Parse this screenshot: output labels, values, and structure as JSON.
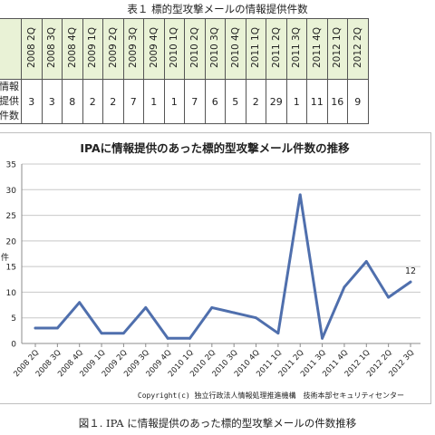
{
  "table": {
    "caption": "表１ 標的型攻撃メールの情報提供件数",
    "row_header": "情報提供件数",
    "periods": [
      "2008 2Q",
      "2008 3Q",
      "2008 4Q",
      "2009 1Q",
      "2009 2Q",
      "2009 3Q",
      "2009 4Q",
      "2010 1Q",
      "2010 2Q",
      "2010 3Q",
      "2010 4Q",
      "2011 1Q",
      "2011 2Q",
      "2011 3Q",
      "2011 4Q",
      "2012 1Q",
      "2012 2Q"
    ],
    "counts": [
      3,
      3,
      8,
      2,
      2,
      7,
      1,
      1,
      7,
      6,
      5,
      2,
      29,
      1,
      11,
      16,
      9
    ]
  },
  "chart_data": {
    "type": "line",
    "title": "IPAに情報提供のあった標的型攻撃メール件数の推移",
    "categories": [
      "2008 2Q",
      "2008 3Q",
      "2008 4Q",
      "2009 1Q",
      "2009 2Q",
      "2009 3Q",
      "2009 4Q",
      "2010 1Q",
      "2010 2Q",
      "2010 3Q",
      "2010 4Q",
      "2011 1Q",
      "2011 2Q",
      "2011 3Q",
      "2011 4Q",
      "2012 1Q",
      "2012 2Q",
      "2012 3Q"
    ],
    "series": [
      {
        "values": [
          3,
          3,
          8,
          2,
          2,
          7,
          1,
          1,
          7,
          6,
          5,
          2,
          29,
          1,
          11,
          16,
          9,
          12
        ],
        "color": "#4f6fad"
      }
    ],
    "ylim": [
      0,
      35
    ],
    "yticks": [
      0,
      5,
      10,
      15,
      20,
      25,
      30,
      35
    ],
    "grid": "horizontal",
    "annotation": {
      "category": "2012 3Q",
      "text": "12"
    },
    "ylabel_partial": "件",
    "copyright": "Copyright(c) 独立行政法人情報処理推進機構　技術本部セキュリティセンター"
  },
  "figure_caption": "図１. IPA に情報提供のあった標的型攻撃メールの件数推移"
}
